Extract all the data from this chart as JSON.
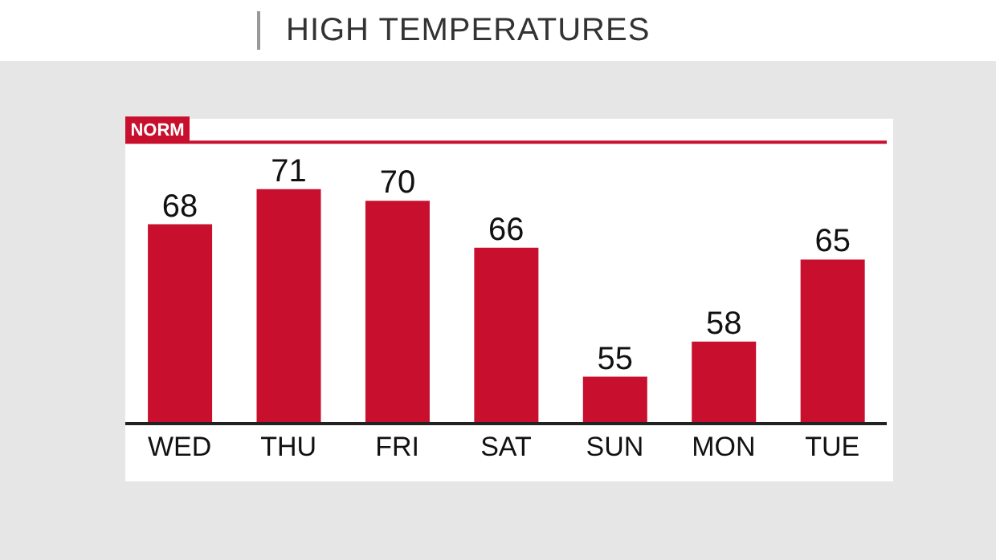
{
  "chart_data": {
    "type": "bar",
    "title": "HIGH TEMPERATURES",
    "categories": [
      "WED",
      "THU",
      "FRI",
      "SAT",
      "SUN",
      "MON",
      "TUE"
    ],
    "values": [
      68,
      71,
      70,
      66,
      55,
      58,
      65
    ],
    "color": "#c8102e",
    "ylim": [
      51,
      77
    ],
    "tick_labels": "x",
    "data_labels": true,
    "grid": false,
    "legend": false,
    "ref_lines": [
      {
        "axis": "y",
        "value": 75,
        "label": "NORM",
        "color": "#c8102e"
      }
    ]
  }
}
